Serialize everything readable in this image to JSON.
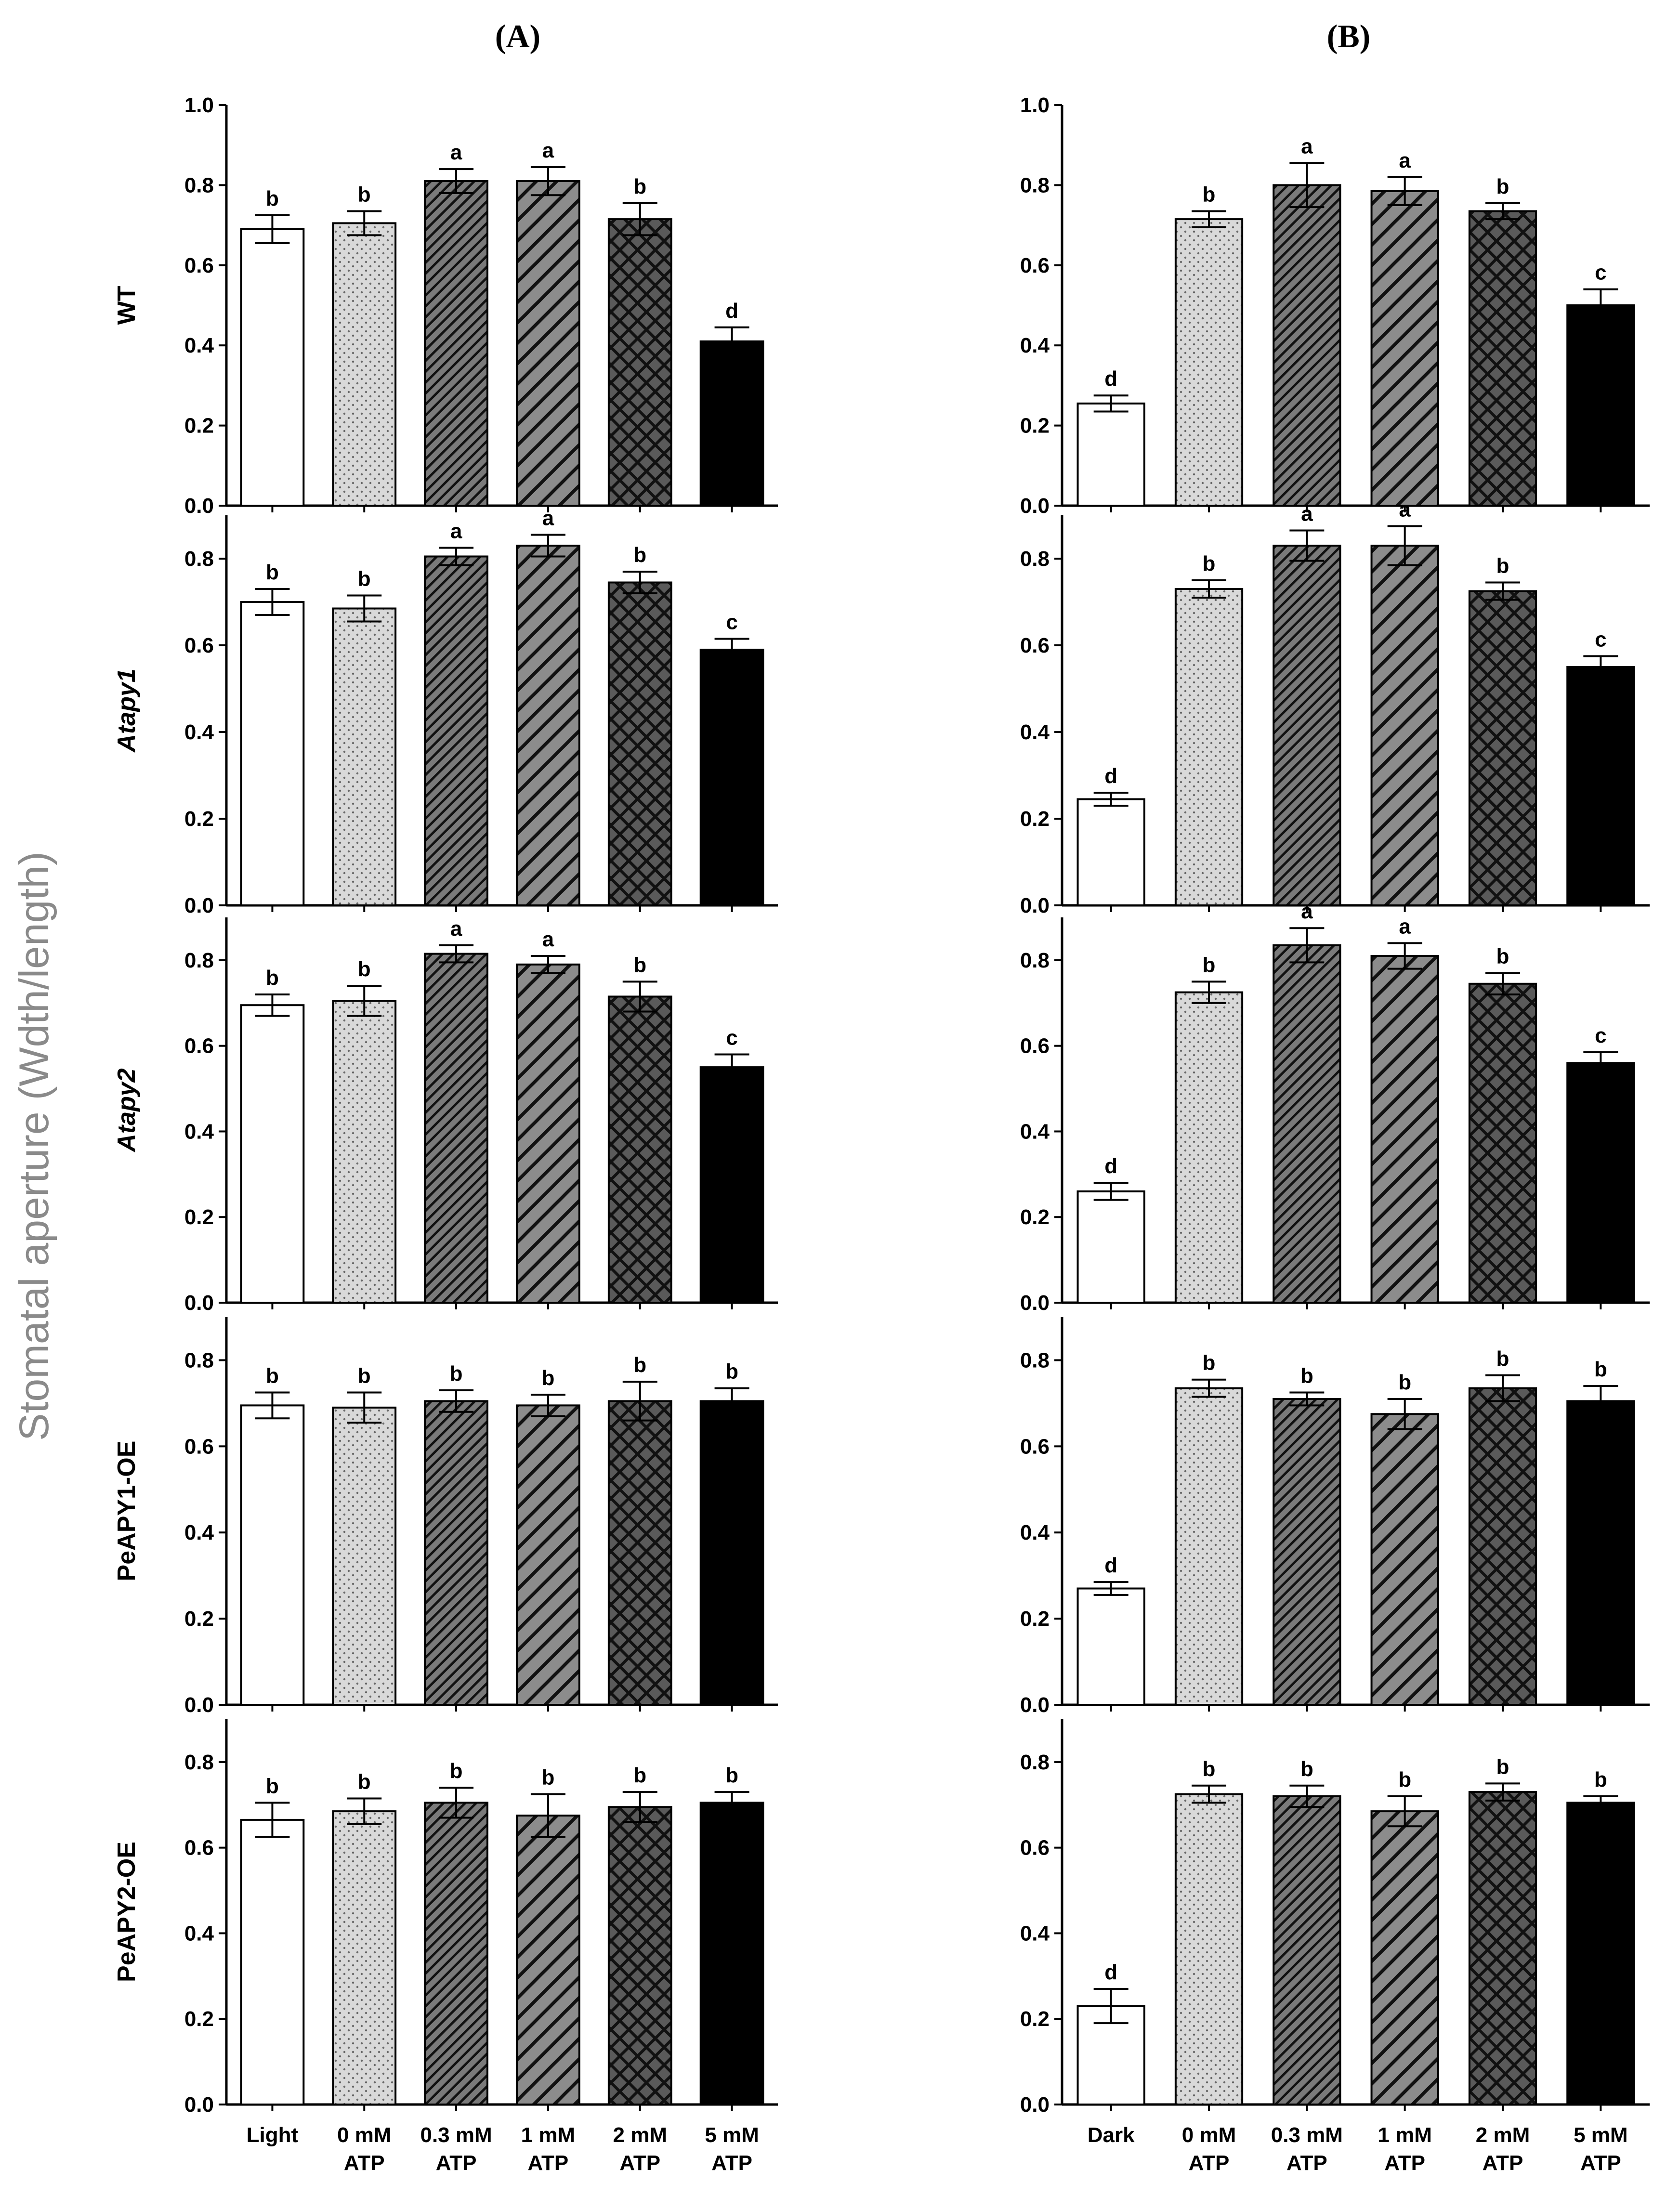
{
  "figure": {
    "y_axis_title": "Stomatal aperture (Wdth/length)"
  },
  "chart_data": {
    "type": "bar",
    "panels": [
      {
        "id": "A",
        "title": "(A)",
        "first_category": "Light"
      },
      {
        "id": "B",
        "title": "(B)",
        "first_category": "Dark"
      }
    ],
    "category_labels": {
      "A": [
        [
          "Light"
        ],
        [
          "0 mM",
          "ATP"
        ],
        [
          "0.3 mM",
          "ATP"
        ],
        [
          "1 mM",
          "ATP"
        ],
        [
          "2 mM",
          "ATP"
        ],
        [
          "5 mM",
          "ATP"
        ]
      ],
      "B": [
        [
          "Dark"
        ],
        [
          "0 mM",
          "ATP"
        ],
        [
          "0.3 mM",
          "ATP"
        ],
        [
          "1 mM",
          "ATP"
        ],
        [
          "2 mM",
          "ATP"
        ],
        [
          "5 mM",
          "ATP"
        ]
      ]
    },
    "bar_fills": [
      "white",
      "dots",
      "dense-diagonal",
      "wide-diagonal",
      "crosshatch",
      "black"
    ],
    "ylabel": "Stomatal aperture (Wdth/length)",
    "rows": [
      {
        "genotype": "WT",
        "italic": false,
        "ylim": [
          0,
          1.0
        ],
        "yticks": [
          "0.0",
          "0.2",
          "0.4",
          "0.6",
          "0.8",
          "1.0"
        ],
        "A": {
          "values": [
            0.69,
            0.705,
            0.81,
            0.81,
            0.715,
            0.41
          ],
          "errors": [
            0.035,
            0.03,
            0.03,
            0.035,
            0.04,
            0.035
          ],
          "letters": [
            "b",
            "b",
            "a",
            "a",
            "b",
            "d"
          ]
        },
        "B": {
          "values": [
            0.255,
            0.715,
            0.8,
            0.785,
            0.735,
            0.5
          ],
          "errors": [
            0.02,
            0.02,
            0.055,
            0.035,
            0.02,
            0.04
          ],
          "letters": [
            "d",
            "b",
            "a",
            "a",
            "b",
            "c"
          ]
        }
      },
      {
        "genotype": "Atapy1",
        "italic": true,
        "ylim": [
          0,
          0.9
        ],
        "yticks": [
          "0.0",
          "0.2",
          "0.4",
          "0.6",
          "0.8"
        ],
        "A": {
          "values": [
            0.7,
            0.685,
            0.805,
            0.83,
            0.745,
            0.59
          ],
          "errors": [
            0.03,
            0.03,
            0.02,
            0.025,
            0.025,
            0.025
          ],
          "letters": [
            "b",
            "b",
            "a",
            "a",
            "b",
            "c"
          ]
        },
        "B": {
          "values": [
            0.245,
            0.73,
            0.83,
            0.83,
            0.725,
            0.55
          ],
          "errors": [
            0.015,
            0.02,
            0.035,
            0.045,
            0.02,
            0.025
          ],
          "letters": [
            "d",
            "b",
            "a",
            "a",
            "b",
            "c"
          ]
        }
      },
      {
        "genotype": "Atapy2",
        "italic": true,
        "ylim": [
          0,
          0.9
        ],
        "yticks": [
          "0.0",
          "0.2",
          "0.4",
          "0.6",
          "0.8"
        ],
        "A": {
          "values": [
            0.695,
            0.705,
            0.815,
            0.79,
            0.715,
            0.55
          ],
          "errors": [
            0.025,
            0.035,
            0.02,
            0.02,
            0.035,
            0.03
          ],
          "letters": [
            "b",
            "b",
            "a",
            "a",
            "b",
            "c"
          ]
        },
        "B": {
          "values": [
            0.26,
            0.725,
            0.835,
            0.81,
            0.745,
            0.56
          ],
          "errors": [
            0.02,
            0.025,
            0.04,
            0.03,
            0.025,
            0.025
          ],
          "letters": [
            "d",
            "b",
            "a",
            "a",
            "b",
            "c"
          ]
        }
      },
      {
        "genotype": "PeAPY1-OE",
        "italic": false,
        "ylim": [
          0,
          0.9
        ],
        "yticks": [
          "0.0",
          "0.2",
          "0.4",
          "0.6",
          "0.8"
        ],
        "A": {
          "values": [
            0.695,
            0.69,
            0.705,
            0.695,
            0.705,
            0.705
          ],
          "errors": [
            0.03,
            0.035,
            0.025,
            0.025,
            0.045,
            0.03
          ],
          "letters": [
            "b",
            "b",
            "b",
            "b",
            "b",
            "b"
          ]
        },
        "B": {
          "values": [
            0.27,
            0.735,
            0.71,
            0.675,
            0.735,
            0.705
          ],
          "errors": [
            0.015,
            0.02,
            0.015,
            0.035,
            0.03,
            0.035
          ],
          "letters": [
            "d",
            "b",
            "b",
            "b",
            "b",
            "b"
          ]
        }
      },
      {
        "genotype": "PeAPY2-OE",
        "italic": false,
        "ylim": [
          0,
          0.9
        ],
        "yticks": [
          "0.0",
          "0.2",
          "0.4",
          "0.6",
          "0.8"
        ],
        "A": {
          "values": [
            0.665,
            0.685,
            0.705,
            0.675,
            0.695,
            0.705
          ],
          "errors": [
            0.04,
            0.03,
            0.035,
            0.05,
            0.035,
            0.025
          ],
          "letters": [
            "b",
            "b",
            "b",
            "b",
            "b",
            "b"
          ]
        },
        "B": {
          "values": [
            0.23,
            0.725,
            0.72,
            0.685,
            0.73,
            0.705
          ],
          "errors": [
            0.04,
            0.02,
            0.025,
            0.035,
            0.02,
            0.015
          ],
          "letters": [
            "d",
            "b",
            "b",
            "b",
            "b",
            "b"
          ]
        }
      }
    ]
  }
}
